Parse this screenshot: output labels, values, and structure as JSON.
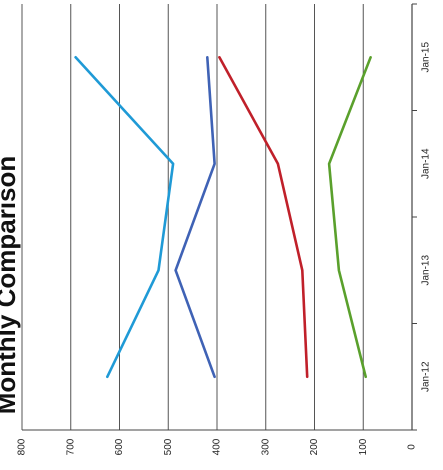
{
  "chart_data": {
    "type": "line",
    "title": "Monthly Comparison",
    "xlabel": "",
    "ylabel": "",
    "categories": [
      "Jan-12",
      "Jan-13",
      "Jan-14",
      "Jan-15"
    ],
    "ylim": [
      0,
      800
    ],
    "yticks": [
      0,
      100,
      200,
      300,
      400,
      500,
      600,
      700,
      800
    ],
    "grid": true,
    "orientation": "rotated-90-clockwise",
    "series": [
      {
        "color": "#1f9ad6",
        "values": [
          625,
          520,
          490,
          690
        ]
      },
      {
        "color": "#3f62b5",
        "values": [
          405,
          485,
          405,
          420
        ]
      },
      {
        "color": "#c0202a",
        "values": [
          215,
          225,
          275,
          395
        ]
      },
      {
        "color": "#5aa02c",
        "values": [
          95,
          150,
          170,
          85
        ]
      }
    ]
  }
}
